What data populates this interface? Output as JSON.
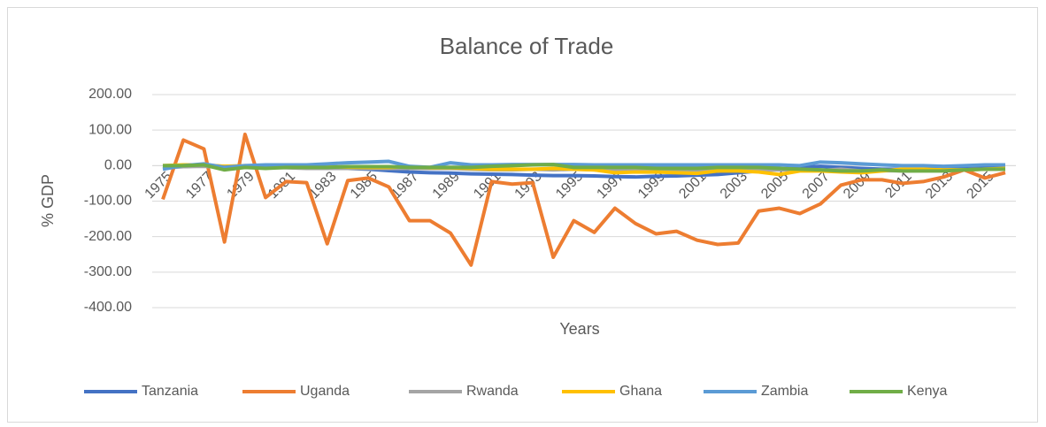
{
  "chart_data": {
    "type": "line",
    "title": "Balance of Trade",
    "x_label": "Years",
    "y_label": "% GDP",
    "categories": [
      "1975",
      null,
      "1977",
      null,
      "1979",
      null,
      "1981",
      null,
      "1983",
      null,
      "1985",
      null,
      "1987",
      null,
      "1989",
      null,
      "1991",
      null,
      "1993",
      null,
      "1995",
      null,
      "1997",
      null,
      "1999",
      null,
      "2001",
      null,
      "2003",
      null,
      "2005",
      null,
      "2007",
      null,
      "2009",
      null,
      "2011",
      null,
      "2013",
      null,
      "2015",
      null
    ],
    "series": [
      {
        "name": "Tanzania",
        "color": "#4472c4",
        "values": [
          -5,
          -3,
          0,
          -2,
          -3,
          -3,
          -3,
          -5,
          -8,
          -8,
          -10,
          -14,
          -18,
          -20,
          -21,
          -23,
          -24,
          -25,
          -27,
          -28,
          -28,
          -29,
          -31,
          -32,
          -30,
          -29,
          -27,
          -25,
          -20,
          -15,
          -10,
          -5,
          -2,
          -5,
          -8,
          -10,
          -10,
          -10,
          -10,
          -8,
          -7,
          -8
        ]
      },
      {
        "name": "Uganda",
        "color": "#ed7d31",
        "values": [
          -95,
          72,
          47,
          -215,
          88,
          -90,
          -45,
          -48,
          -220,
          -42,
          -35,
          -60,
          -155,
          -155,
          -190,
          -280,
          -45,
          -52,
          -48,
          -258,
          -155,
          -188,
          -120,
          -163,
          -192,
          -185,
          -210,
          -222,
          -218,
          -128,
          -120,
          -135,
          -108,
          -55,
          -40,
          -40,
          -50,
          -45,
          -32,
          -12,
          -35,
          -20
        ]
      },
      {
        "name": "Rwanda",
        "color": "#a5a5a5",
        "values": [
          -5,
          -3,
          -2,
          -5,
          -5,
          -5,
          -6,
          -8,
          -8,
          -8,
          -8,
          -8,
          -8,
          -8,
          -8,
          -10,
          -12,
          -12,
          -10,
          -12,
          -10,
          -12,
          -14,
          -14,
          -15,
          -16,
          -15,
          -14,
          -14,
          -13,
          -12,
          -12,
          -14,
          -10,
          -15,
          -14,
          -15,
          -14,
          -13,
          -12,
          -10,
          -10
        ]
      },
      {
        "name": "Ghana",
        "color": "#ffc000",
        "values": [
          0,
          2,
          2,
          -2,
          0,
          -2,
          -3,
          -2,
          -3,
          -4,
          -5,
          -5,
          -3,
          -6,
          -6,
          -8,
          -10,
          -10,
          -10,
          -8,
          -10,
          -12,
          -20,
          -18,
          -18,
          -20,
          -22,
          -15,
          -15,
          -18,
          -25,
          -15,
          -15,
          -18,
          -20,
          -15,
          -10,
          -10,
          -12,
          -12,
          -10,
          -8
        ]
      },
      {
        "name": "Zambia",
        "color": "#5b9bd5",
        "values": [
          -10,
          0,
          5,
          -5,
          0,
          2,
          2,
          2,
          5,
          8,
          10,
          12,
          -2,
          -5,
          8,
          2,
          2,
          3,
          3,
          3,
          3,
          2,
          2,
          2,
          2,
          2,
          2,
          2,
          2,
          2,
          2,
          0,
          10,
          8,
          5,
          2,
          0,
          0,
          -2,
          0,
          2,
          2
        ]
      },
      {
        "name": "Kenya",
        "color": "#70ad47",
        "values": [
          0,
          0,
          2,
          -12,
          -5,
          -8,
          -5,
          -5,
          -5,
          -3,
          -3,
          -3,
          -5,
          -5,
          -5,
          -5,
          -2,
          0,
          2,
          3,
          -5,
          -5,
          -5,
          -5,
          -8,
          -8,
          -8,
          -5,
          -5,
          -5,
          -8,
          -10,
          -12,
          -15,
          -15,
          -12,
          -15,
          -15,
          -15,
          -12,
          -10,
          -10
        ]
      }
    ],
    "ylim": [
      -400,
      200
    ],
    "yticks": [
      {
        "value": -400,
        "label": "-400.00"
      },
      {
        "value": -300,
        "label": "-300.00"
      },
      {
        "value": -200,
        "label": "-200.00"
      },
      {
        "value": -100,
        "label": "-100.00"
      },
      {
        "value": 0,
        "label": "0.00"
      },
      {
        "value": 100,
        "label": "100.00"
      },
      {
        "value": 200,
        "label": "200.00"
      }
    ],
    "grid": true,
    "legend": "bottom"
  }
}
